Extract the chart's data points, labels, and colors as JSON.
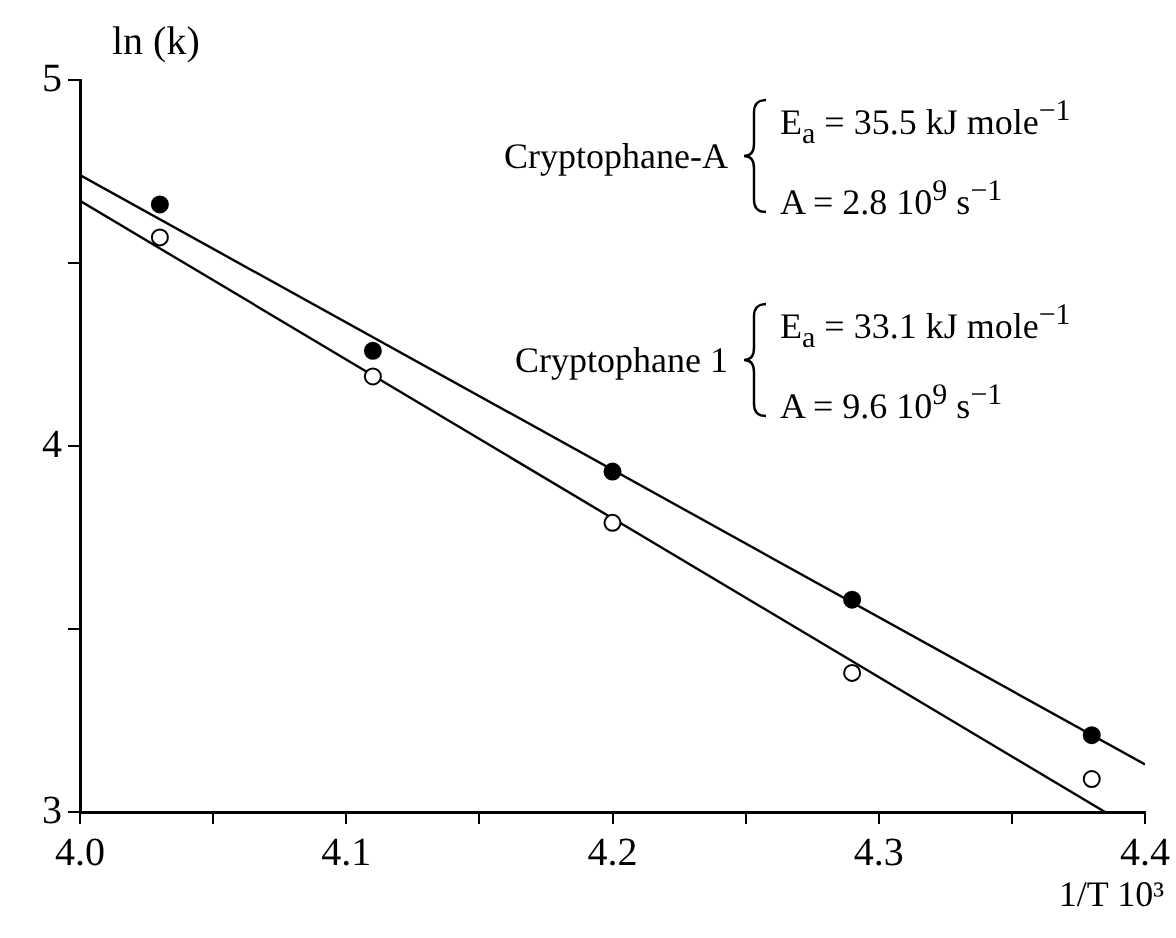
{
  "chart_data": {
    "type": "scatter",
    "xlabel": "1/T 10³",
    "ylabel": "ln (k)",
    "xlim": [
      4.0,
      4.4
    ],
    "ylim": [
      3,
      5
    ],
    "xticks": [
      {
        "value": 4.0,
        "label": "4.0"
      },
      {
        "value": 4.05,
        "label": null
      },
      {
        "value": 4.1,
        "label": "4.1"
      },
      {
        "value": 4.15,
        "label": null
      },
      {
        "value": 4.2,
        "label": "4.2"
      },
      {
        "value": 4.25,
        "label": null
      },
      {
        "value": 4.3,
        "label": "4.3"
      },
      {
        "value": 4.35,
        "label": null
      },
      {
        "value": 4.4,
        "label": "4.4"
      }
    ],
    "yticks": [
      3,
      {
        "value": 3.5,
        "label": null
      },
      4,
      {
        "value": 4.5,
        "label": null
      },
      5
    ],
    "grid": false,
    "legend": false,
    "marker": "circle",
    "series": [
      {
        "type": "scatter",
        "color": "#000000",
        "x": [
          4.03,
          4.11,
          4.2,
          4.29,
          4.38
        ],
        "values": [
          4.66,
          4.26,
          3.93,
          3.58,
          3.21
        ]
      },
      {
        "type": "scatter",
        "color": "#ffffff",
        "x": [
          4.03,
          4.11,
          4.2,
          4.29,
          4.38
        ],
        "values": [
          4.57,
          4.19,
          3.79,
          3.38,
          3.09
        ]
      },
      {
        "type": "line",
        "color": "#000000",
        "marker": "none",
        "x": [
          4.0,
          4.4
        ],
        "values": [
          4.74,
          3.13
        ]
      },
      {
        "type": "line",
        "color": "#000000",
        "marker": "none",
        "x": [
          4.0,
          4.385
        ],
        "values": [
          4.67,
          3.0
        ]
      }
    ],
    "annotations": [
      "Cryptophane-A",
      "E$_{a}$ = 35.5 kJ mole$^{−1}$",
      "A = 2.8 10$^{9}$ s$^{−1}$",
      "Cryptophane 1",
      "E$_{a}$ = 33.1 kJ mole$^{−1}$",
      "A = 9.6 10$^{9}$ s$^{−1}$"
    ]
  }
}
